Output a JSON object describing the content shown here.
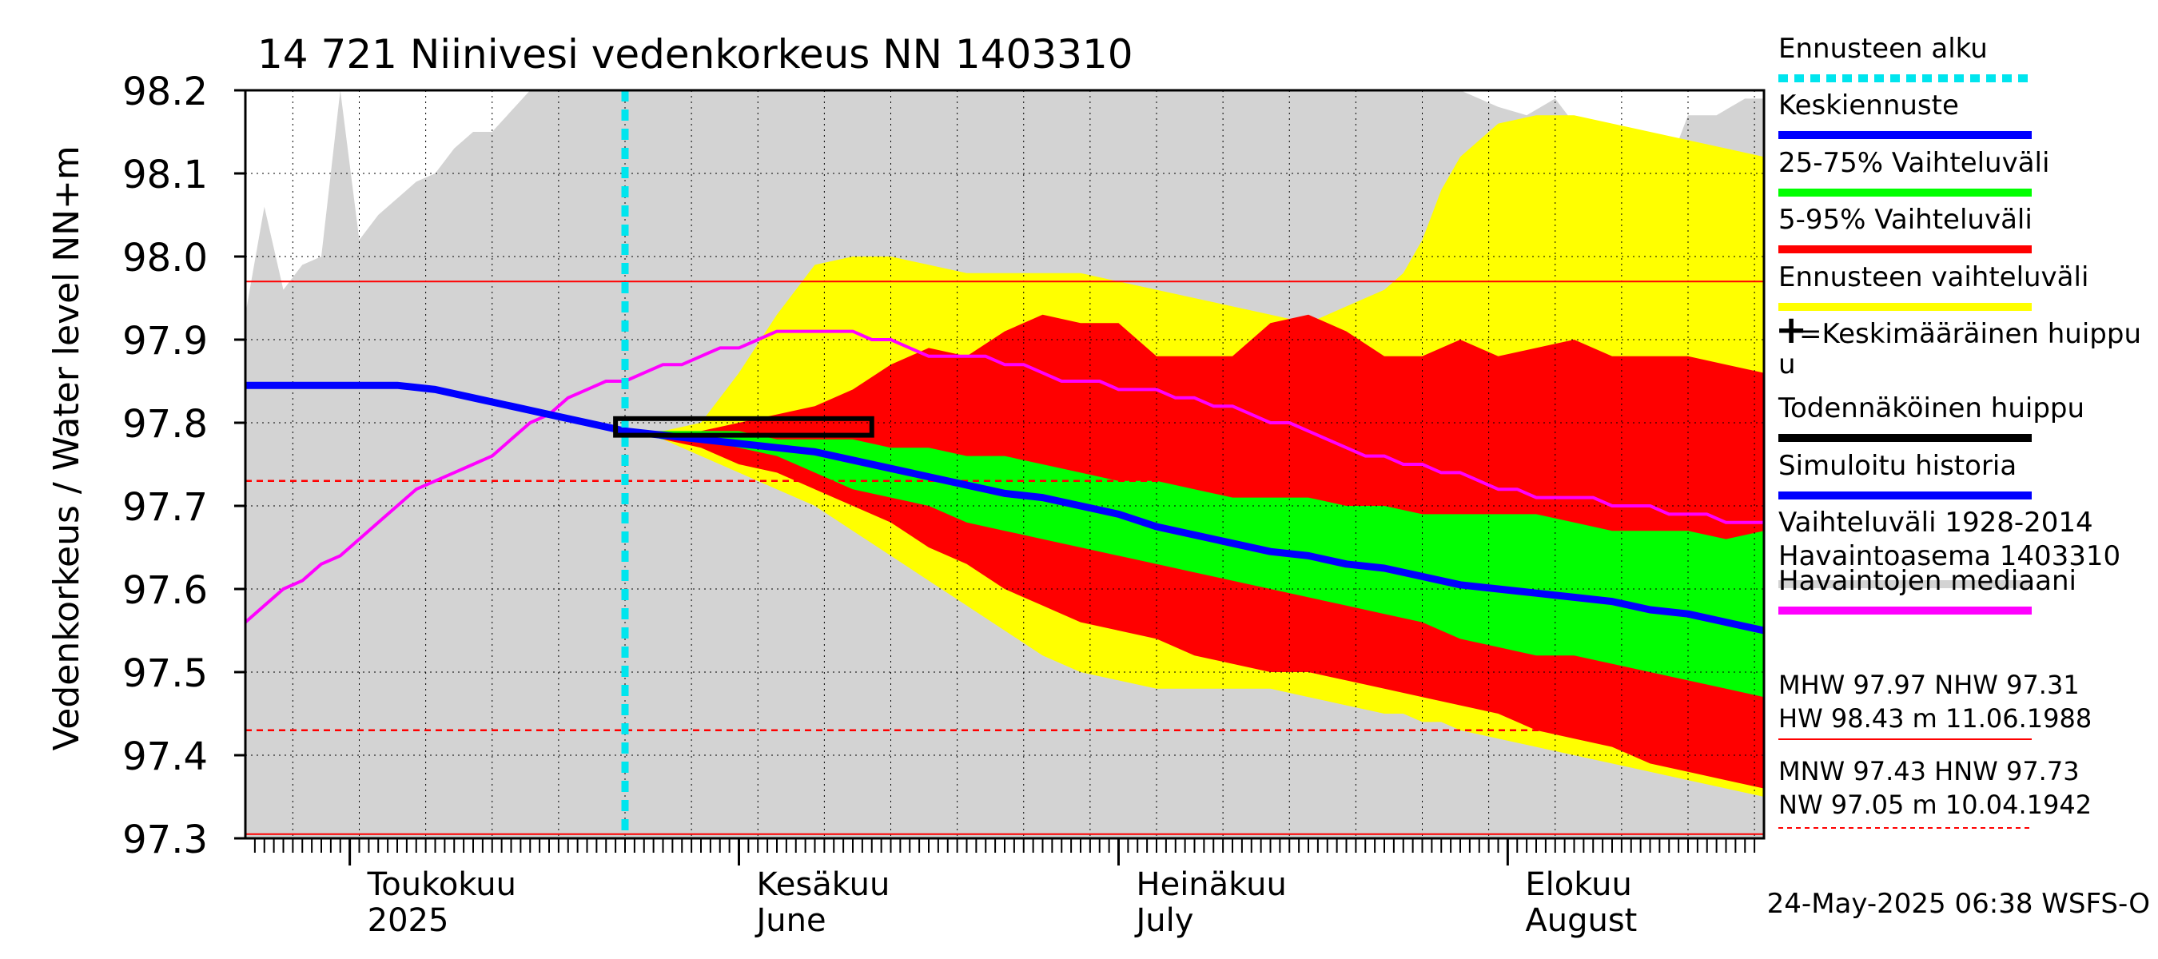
{
  "chart_data": {
    "type": "area",
    "title": "14 721 Niinivesi vedenkorkeus NN 1403310",
    "ylabel": "Vedenkorkeus / Water level",
    "yunit": "NN+m",
    "ylim": [
      97.3,
      98.2
    ],
    "yticks": [
      97.3,
      97.4,
      97.5,
      97.6,
      97.7,
      97.8,
      97.9,
      98.0,
      98.1,
      98.2
    ],
    "xlim": [
      0,
      160
    ],
    "month_labels": [
      {
        "day": 11,
        "fi": "Toukokuu",
        "en": "2025"
      },
      {
        "day": 52,
        "fi": "Kesäkuu",
        "en": "June"
      },
      {
        "day": 92,
        "fi": "Heinäkuu",
        "en": "July"
      },
      {
        "day": 133,
        "fi": "Elokuu",
        "en": "August"
      }
    ],
    "forecast_start_day": 40,
    "ref_lines": {
      "mhw": 97.97,
      "hnw": 97.73,
      "mnw": 97.43,
      "nw": 97.305
    },
    "history_range": {
      "days": [
        0,
        2,
        4,
        6,
        8,
        10,
        12,
        14,
        16,
        18,
        20,
        22,
        24,
        26,
        30,
        40,
        50,
        60,
        70,
        80,
        90,
        100,
        110,
        120,
        125,
        126,
        128,
        132,
        135,
        138,
        140,
        142,
        145,
        148,
        150,
        152,
        155,
        158,
        160
      ],
      "upper": [
        97.93,
        98.06,
        97.96,
        97.99,
        98.0,
        98.2,
        98.02,
        98.05,
        98.07,
        98.09,
        98.1,
        98.13,
        98.15,
        98.15,
        98.2,
        98.2,
        98.2,
        98.2,
        98.2,
        98.2,
        98.2,
        98.2,
        98.2,
        98.2,
        98.2,
        98.2,
        98.2,
        98.18,
        98.17,
        98.19,
        98.16,
        98.13,
        98.1,
        98.13,
        98.11,
        98.17,
        98.17,
        98.19,
        98.19
      ]
    },
    "series": [
      {
        "name": "Ennusteen vaihteluväli",
        "kind": "band",
        "color": "#ffff00",
        "days": [
          40,
          44,
          48,
          52,
          56,
          60,
          64,
          68,
          72,
          76,
          80,
          84,
          88,
          92,
          96,
          100,
          104,
          108,
          112,
          116,
          120,
          122,
          124,
          126,
          128,
          132,
          136,
          140,
          144,
          148,
          152,
          156,
          160
        ],
        "upper": [
          97.79,
          97.79,
          97.8,
          97.86,
          97.93,
          97.99,
          98.0,
          98.0,
          97.99,
          97.98,
          97.98,
          97.98,
          97.98,
          97.97,
          97.96,
          97.95,
          97.94,
          97.93,
          97.92,
          97.94,
          97.96,
          97.98,
          98.02,
          98.08,
          98.12,
          98.16,
          98.17,
          98.17,
          98.16,
          98.15,
          98.14,
          98.13,
          98.12
        ],
        "lower": [
          97.79,
          97.78,
          97.76,
          97.74,
          97.72,
          97.7,
          97.67,
          97.64,
          97.61,
          97.58,
          97.55,
          97.52,
          97.5,
          97.49,
          97.48,
          97.48,
          97.48,
          97.48,
          97.47,
          97.46,
          97.45,
          97.45,
          97.44,
          97.44,
          97.43,
          97.42,
          97.41,
          97.4,
          97.39,
          97.38,
          97.37,
          97.36,
          97.35
        ]
      },
      {
        "name": "5-95% Vaihteluväli",
        "kind": "band",
        "color": "#ff0000",
        "days": [
          40,
          44,
          48,
          52,
          56,
          60,
          64,
          68,
          72,
          76,
          80,
          84,
          88,
          92,
          96,
          100,
          104,
          108,
          112,
          116,
          120,
          124,
          128,
          132,
          136,
          140,
          144,
          148,
          152,
          156,
          160
        ],
        "upper": [
          97.79,
          97.79,
          97.79,
          97.8,
          97.81,
          97.82,
          97.84,
          97.87,
          97.89,
          97.88,
          97.91,
          97.93,
          97.92,
          97.92,
          97.88,
          97.88,
          97.88,
          97.92,
          97.93,
          97.91,
          97.88,
          97.88,
          97.9,
          97.88,
          97.89,
          97.9,
          97.88,
          97.88,
          97.88,
          97.87,
          97.86
        ],
        "lower": [
          97.79,
          97.78,
          97.77,
          97.75,
          97.74,
          97.72,
          97.7,
          97.68,
          97.65,
          97.63,
          97.6,
          97.58,
          97.56,
          97.55,
          97.54,
          97.52,
          97.51,
          97.5,
          97.5,
          97.49,
          97.48,
          97.47,
          97.46,
          97.45,
          97.43,
          97.42,
          97.41,
          97.39,
          97.38,
          97.37,
          97.36
        ]
      },
      {
        "name": "25-75% Vaihteluväli",
        "kind": "band",
        "color": "#00ff00",
        "days": [
          40,
          44,
          48,
          52,
          56,
          60,
          64,
          68,
          72,
          76,
          80,
          84,
          88,
          92,
          96,
          100,
          104,
          108,
          112,
          116,
          120,
          124,
          128,
          132,
          136,
          140,
          144,
          148,
          152,
          156,
          160
        ],
        "upper": [
          97.79,
          97.79,
          97.79,
          97.79,
          97.78,
          97.78,
          97.78,
          97.77,
          97.77,
          97.76,
          97.76,
          97.75,
          97.74,
          97.73,
          97.73,
          97.72,
          97.71,
          97.71,
          97.71,
          97.7,
          97.7,
          97.69,
          97.69,
          97.69,
          97.69,
          97.68,
          97.67,
          97.67,
          97.67,
          97.66,
          97.67
        ],
        "lower": [
          97.79,
          97.78,
          97.78,
          97.77,
          97.76,
          97.74,
          97.72,
          97.71,
          97.7,
          97.68,
          97.67,
          97.66,
          97.65,
          97.64,
          97.63,
          97.62,
          97.61,
          97.6,
          97.59,
          97.58,
          97.57,
          97.56,
          97.54,
          97.53,
          97.52,
          97.52,
          97.51,
          97.5,
          97.49,
          97.48,
          97.47
        ]
      },
      {
        "name": "Havaintojen mediaani",
        "kind": "line",
        "color": "#ff00ff",
        "days": [
          0,
          2,
          4,
          6,
          8,
          10,
          12,
          14,
          16,
          18,
          20,
          22,
          24,
          26,
          28,
          30,
          32,
          34,
          36,
          38,
          40,
          42,
          44,
          46,
          48,
          50,
          52,
          54,
          56,
          58,
          60,
          62,
          64,
          66,
          68,
          70,
          72,
          74,
          76,
          78,
          80,
          82,
          84,
          86,
          88,
          90,
          92,
          94,
          96,
          98,
          100,
          102,
          104,
          106,
          108,
          110,
          112,
          114,
          116,
          118,
          120,
          122,
          124,
          126,
          128,
          130,
          132,
          134,
          136,
          138,
          140,
          142,
          144,
          146,
          148,
          150,
          152,
          154,
          156,
          158,
          160
        ],
        "values": [
          97.56,
          97.58,
          97.6,
          97.61,
          97.63,
          97.64,
          97.66,
          97.68,
          97.7,
          97.72,
          97.73,
          97.74,
          97.75,
          97.76,
          97.78,
          97.8,
          97.81,
          97.83,
          97.84,
          97.85,
          97.85,
          97.86,
          97.87,
          97.87,
          97.88,
          97.89,
          97.89,
          97.9,
          97.91,
          97.91,
          97.91,
          97.91,
          97.91,
          97.9,
          97.9,
          97.89,
          97.88,
          97.88,
          97.88,
          97.88,
          97.87,
          97.87,
          97.86,
          97.85,
          97.85,
          97.85,
          97.84,
          97.84,
          97.84,
          97.83,
          97.83,
          97.82,
          97.82,
          97.81,
          97.8,
          97.8,
          97.79,
          97.78,
          97.77,
          97.76,
          97.76,
          97.75,
          97.75,
          97.74,
          97.74,
          97.73,
          97.72,
          97.72,
          97.71,
          97.71,
          97.71,
          97.71,
          97.7,
          97.7,
          97.7,
          97.69,
          97.69,
          97.69,
          97.68,
          97.68,
          97.68
        ]
      },
      {
        "name": "Simuloitu historia / Keskiennuste",
        "kind": "line",
        "color": "#0000ff",
        "days": [
          0,
          4,
          8,
          12,
          16,
          20,
          24,
          28,
          32,
          36,
          40,
          44,
          48,
          52,
          56,
          60,
          64,
          68,
          72,
          76,
          80,
          84,
          88,
          92,
          96,
          100,
          104,
          108,
          112,
          116,
          120,
          124,
          128,
          132,
          136,
          140,
          144,
          148,
          152,
          156,
          160
        ],
        "values": [
          97.845,
          97.845,
          97.845,
          97.845,
          97.845,
          97.84,
          97.83,
          97.82,
          97.81,
          97.8,
          97.79,
          97.785,
          97.78,
          97.775,
          97.77,
          97.765,
          97.755,
          97.745,
          97.735,
          97.725,
          97.715,
          97.71,
          97.7,
          97.69,
          97.675,
          97.665,
          97.655,
          97.645,
          97.64,
          97.63,
          97.625,
          97.615,
          97.605,
          97.6,
          97.595,
          97.59,
          97.585,
          97.575,
          97.57,
          97.56,
          97.55
        ]
      }
    ],
    "probable_peak_box": {
      "day_start": 39,
      "day_end": 66,
      "y_low": 97.785,
      "y_high": 97.805
    },
    "legend": [
      {
        "label": "Ennusteen alku",
        "color": "#00e5ee",
        "style": "dotted"
      },
      {
        "label": "Keskiennuste",
        "color": "#0000ff",
        "style": "solid"
      },
      {
        "label": "25-75% Vaihteluväli",
        "color": "#00ff00",
        "style": "solid"
      },
      {
        "label": "5-95% Vaihteluväli",
        "color": "#ff0000",
        "style": "solid"
      },
      {
        "label": "Ennusteen vaihteluväli",
        "color": "#ffff00",
        "style": "solid"
      },
      {
        "label": "=Keskimääräinen huippu",
        "color": "#000000",
        "style": "plus"
      },
      {
        "label": "Todennäköinen huippu",
        "color": "#000000",
        "style": "solid"
      },
      {
        "label": "Simuloitu historia",
        "color": "#0000ff",
        "style": "solid"
      },
      {
        "label": "Vaihteluväli 1928-2014",
        "color": "#d3d3d3",
        "style": "solid"
      },
      {
        "label": "Havaintojen mediaani",
        "color": "#ff00ff",
        "style": "solid"
      }
    ],
    "legend_extra": {
      "station": " Havaintoasema 1403310",
      "plus_cont": "u",
      "stats_line1": "MHW  97.97 NHW  97.31",
      "stats_line2": "HW  98.43 m 11.06.1988",
      "stats_line3": "MNW  97.43 HNW  97.73",
      "stats_line4": "NW  97.05 m 10.04.1942"
    },
    "timestamp": "24-May-2025 06:38 WSFS-O"
  }
}
